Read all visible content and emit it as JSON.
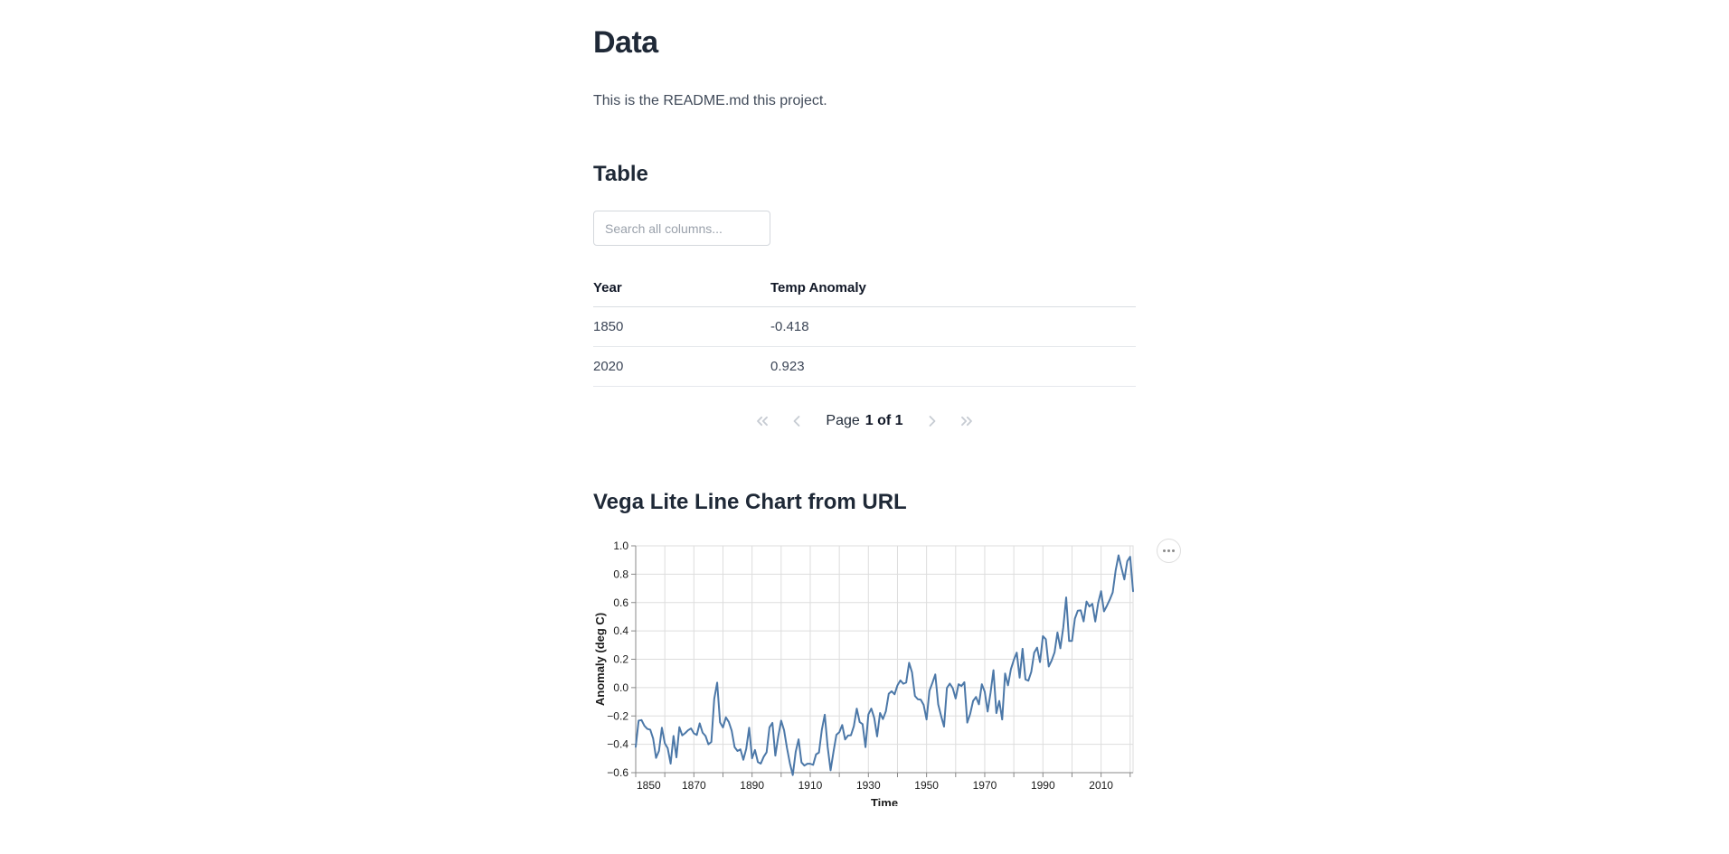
{
  "page": {
    "title": "Data",
    "intro": "This is the README.md this project."
  },
  "table_section": {
    "heading": "Table",
    "search_placeholder": "Search all columns...",
    "columns": [
      "Year",
      "Temp Anomaly"
    ],
    "rows": [
      [
        "1850",
        "-0.418"
      ],
      [
        "2020",
        "0.923"
      ]
    ],
    "pagination": {
      "page_label": "Page",
      "page_value": "1 of 1"
    }
  },
  "chart_section": {
    "heading": "Vega Lite Line Chart from URL"
  },
  "chart_data": {
    "type": "line",
    "title": "",
    "xlabel": "Time",
    "ylabel": "Anomaly (deg C)",
    "x_domain": [
      1850,
      2021
    ],
    "y_domain": [
      -0.6,
      1.0
    ],
    "x_start_year": 1850,
    "x_grid_step": 10,
    "x_tick_labels": [
      1850,
      1870,
      1890,
      1910,
      1930,
      1950,
      1970,
      1990,
      2010
    ],
    "y_ticks": [
      -0.6,
      -0.4,
      -0.2,
      0.0,
      0.2,
      0.4,
      0.6,
      0.8,
      1.0
    ],
    "legend": "none",
    "grid": true,
    "line_color": "#4c78a8",
    "grid_color": "#dddddd",
    "axis_color": "#888888",
    "label_color": "#1a1a1a",
    "values": [
      -0.418,
      -0.233,
      -0.229,
      -0.27,
      -0.291,
      -0.297,
      -0.36,
      -0.496,
      -0.446,
      -0.283,
      -0.392,
      -0.428,
      -0.536,
      -0.341,
      -0.492,
      -0.279,
      -0.337,
      -0.321,
      -0.301,
      -0.288,
      -0.323,
      -0.334,
      -0.252,
      -0.318,
      -0.341,
      -0.4,
      -0.383,
      -0.079,
      0.035,
      -0.245,
      -0.281,
      -0.21,
      -0.242,
      -0.304,
      -0.42,
      -0.447,
      -0.435,
      -0.509,
      -0.432,
      -0.283,
      -0.499,
      -0.44,
      -0.525,
      -0.536,
      -0.488,
      -0.456,
      -0.28,
      -0.249,
      -0.48,
      -0.345,
      -0.233,
      -0.3,
      -0.425,
      -0.533,
      -0.617,
      -0.453,
      -0.365,
      -0.528,
      -0.55,
      -0.537,
      -0.537,
      -0.545,
      -0.471,
      -0.458,
      -0.296,
      -0.191,
      -0.42,
      -0.583,
      -0.453,
      -0.333,
      -0.315,
      -0.264,
      -0.366,
      -0.338,
      -0.336,
      -0.272,
      -0.148,
      -0.243,
      -0.258,
      -0.42,
      -0.189,
      -0.148,
      -0.213,
      -0.344,
      -0.179,
      -0.222,
      -0.167,
      -0.043,
      -0.026,
      -0.047,
      0.016,
      0.051,
      0.027,
      0.036,
      0.175,
      0.107,
      -0.059,
      -0.082,
      -0.085,
      -0.122,
      -0.225,
      -0.022,
      0.033,
      0.093,
      -0.118,
      -0.2,
      -0.275,
      -0.002,
      0.028,
      -0.004,
      -0.077,
      0.024,
      0.011,
      0.038,
      -0.247,
      -0.185,
      -0.094,
      -0.066,
      -0.118,
      0.024,
      -0.029,
      -0.169,
      -0.036,
      0.123,
      -0.18,
      -0.094,
      -0.225,
      0.1,
      0.016,
      0.13,
      0.195,
      0.247,
      0.07,
      0.274,
      0.058,
      0.049,
      0.111,
      0.246,
      0.282,
      0.18,
      0.363,
      0.341,
      0.149,
      0.191,
      0.248,
      0.389,
      0.277,
      0.425,
      0.636,
      0.329,
      0.329,
      0.487,
      0.543,
      0.545,
      0.467,
      0.607,
      0.572,
      0.591,
      0.466,
      0.597,
      0.68,
      0.538,
      0.577,
      0.621,
      0.672,
      0.825,
      0.933,
      0.845,
      0.763,
      0.891,
      0.923,
      0.68
    ]
  }
}
